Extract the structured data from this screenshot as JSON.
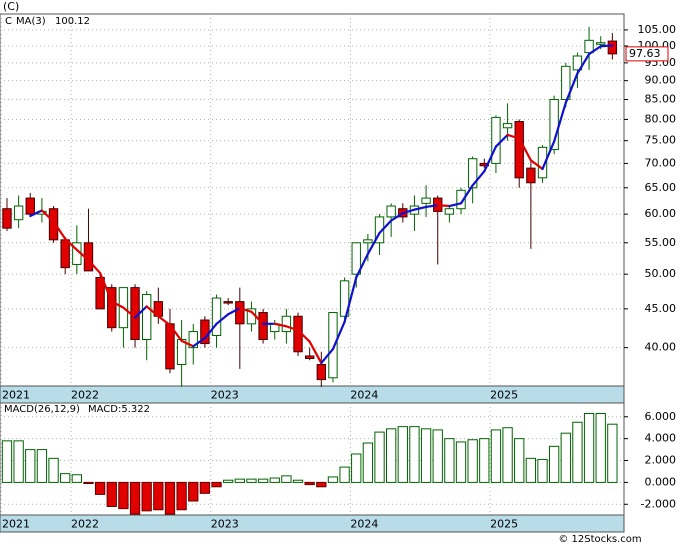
{
  "footer": "© 12Stocks.com",
  "chart_data": [
    {
      "type": "candlestick",
      "title": "(C)",
      "legend_symbol": "C",
      "ma_name": "MA(3)",
      "open": [
        61,
        59,
        63,
        60,
        61,
        55.5,
        51.5,
        55,
        49.5,
        48,
        42.5,
        48,
        41,
        46,
        43,
        38,
        40,
        43.5,
        41.5,
        46,
        46,
        43,
        44.5,
        42,
        42,
        44,
        39,
        38,
        36.5,
        44,
        50,
        55,
        55,
        59.5,
        61,
        60,
        62,
        63,
        60,
        61,
        65,
        70,
        70,
        78,
        79.5,
        69,
        67,
        73,
        85,
        93,
        98,
        100.5,
        101.5
      ],
      "high": [
        63,
        63.5,
        64,
        63,
        61.5,
        56,
        58,
        61,
        50,
        48.5,
        48,
        48.5,
        47.5,
        48,
        45,
        43.5,
        43,
        44,
        47,
        46.5,
        48,
        46,
        45,
        43.5,
        45,
        44.5,
        40,
        39.5,
        44.5,
        49.5,
        55,
        56.5,
        60,
        62,
        62,
        63.5,
        65.5,
        63.5,
        61.5,
        65,
        71.5,
        71,
        81,
        84,
        80,
        71,
        74,
        86,
        95,
        98,
        106,
        103,
        104
      ],
      "low": [
        57,
        57.5,
        59.5,
        58.5,
        55,
        50,
        50,
        50.5,
        45,
        42,
        40,
        40,
        38.5,
        43,
        37,
        35.5,
        38,
        40,
        40,
        45.5,
        37.5,
        42,
        40.5,
        41,
        40.5,
        39,
        38.5,
        35.5,
        36,
        43,
        48,
        52,
        53,
        56,
        58.5,
        57,
        59.5,
        51.5,
        58.5,
        60,
        62,
        69,
        68,
        75,
        65,
        54,
        66,
        72,
        83,
        88,
        93,
        99,
        96
      ],
      "close": [
        57.5,
        61.5,
        60,
        60.5,
        55.5,
        51,
        55,
        50.5,
        45,
        42.5,
        48,
        41,
        47,
        44,
        37.5,
        41,
        42,
        40.5,
        46.5,
        45.8,
        43,
        45,
        41,
        43,
        44,
        39.5,
        38.7,
        36.3,
        44.5,
        49,
        55,
        55.5,
        59.5,
        61.5,
        59.5,
        61.5,
        63,
        60.5,
        61,
        64.5,
        71,
        69.5,
        80.5,
        79,
        67,
        66,
        73.5,
        85,
        94,
        97,
        101.73,
        101,
        97.63
      ],
      "ma": [
        null,
        null,
        59.67,
        60.67,
        58.67,
        55.67,
        53.83,
        52.17,
        50.17,
        46,
        45.17,
        43.83,
        45.33,
        44,
        42.83,
        40.83,
        40.17,
        41.17,
        43,
        44.27,
        45.1,
        44.6,
        43,
        43,
        42.67,
        42.17,
        40.73,
        38.17,
        39.83,
        43.27,
        49.5,
        53.17,
        56.67,
        58.83,
        60.17,
        60.83,
        61.33,
        61.67,
        61.5,
        62,
        65.5,
        68.33,
        73.67,
        76.33,
        75.5,
        70.67,
        68.83,
        74.83,
        84.17,
        92,
        97.58,
        99.91,
        100.12
      ],
      "up_color": "#006400",
      "down_color": "#e00000",
      "ma_up_color": "#1010d0",
      "ma_down_color": "#e00000",
      "log_scale": true,
      "grid": true,
      "ylim": [
        35.6,
        110.2
      ],
      "yticks": [
        {
          "value": 40,
          "label": "40.00"
        },
        {
          "value": 45,
          "label": "45.00"
        },
        {
          "value": 50,
          "label": "50.00"
        },
        {
          "value": 55,
          "label": "55.00"
        },
        {
          "value": 60,
          "label": "60.00"
        },
        {
          "value": 65,
          "label": "65.00"
        },
        {
          "value": 70,
          "label": "70.00"
        },
        {
          "value": 75,
          "label": "75.00"
        },
        {
          "value": 80,
          "label": "80.00"
        },
        {
          "value": 85,
          "label": "85.00"
        },
        {
          "value": 90,
          "label": "90.00"
        },
        {
          "value": 95,
          "label": "95.00"
        },
        {
          "value": 100,
          "label": "100.00"
        },
        {
          "value": 105,
          "label": "105.00"
        }
      ],
      "xlim": [
        -0.6,
        53
      ],
      "xticks": [
        {
          "value": -0.5,
          "label": "2021"
        },
        {
          "value": 5.5,
          "label": "2022"
        },
        {
          "value": 17.5,
          "label": "2023"
        },
        {
          "value": 29.5,
          "label": "2024"
        },
        {
          "value": 41.5,
          "label": "2025"
        }
      ]
    },
    {
      "type": "bar",
      "legend": "MACD(26,12,9)",
      "current_label": "MACD:5.322",
      "values": [
        3.8,
        3.8,
        3.0,
        3.0,
        2.2,
        0.8,
        0.7,
        -0.1,
        -1.1,
        -2.2,
        -2.4,
        -2.9,
        -2.6,
        -2.5,
        -2.9,
        -2.5,
        -1.7,
        -1.0,
        -0.4,
        0.2,
        0.3,
        0.3,
        0.3,
        0.4,
        0.6,
        0.2,
        -0.2,
        -0.4,
        0.5,
        1.4,
        2.6,
        3.6,
        4.6,
        4.9,
        5.1,
        5.1,
        4.9,
        4.8,
        4.0,
        3.7,
        3.9,
        4.0,
        4.8,
        5.0,
        4.0,
        2.2,
        2.1,
        3.3,
        4.5,
        5.5,
        6.3,
        6.3,
        5.322
      ],
      "up_color": "#006400",
      "down_color": "#e00000",
      "grid": true,
      "ylim": [
        -2.98,
        7.26
      ],
      "yticks": [
        {
          "value": -2,
          "label": "-2.000"
        },
        {
          "value": 0,
          "label": "0.000"
        },
        {
          "value": 2,
          "label": "2.000"
        },
        {
          "value": 4,
          "label": "4.000"
        },
        {
          "value": 6,
          "label": "6.000"
        }
      ],
      "xlim": [
        -0.6,
        53
      ],
      "xticks": [
        {
          "value": -0.5,
          "label": "2021"
        },
        {
          "value": 5.5,
          "label": "2022"
        },
        {
          "value": 17.5,
          "label": "2023"
        },
        {
          "value": 29.5,
          "label": "2024"
        },
        {
          "value": 41.5,
          "label": "2025"
        }
      ]
    }
  ]
}
